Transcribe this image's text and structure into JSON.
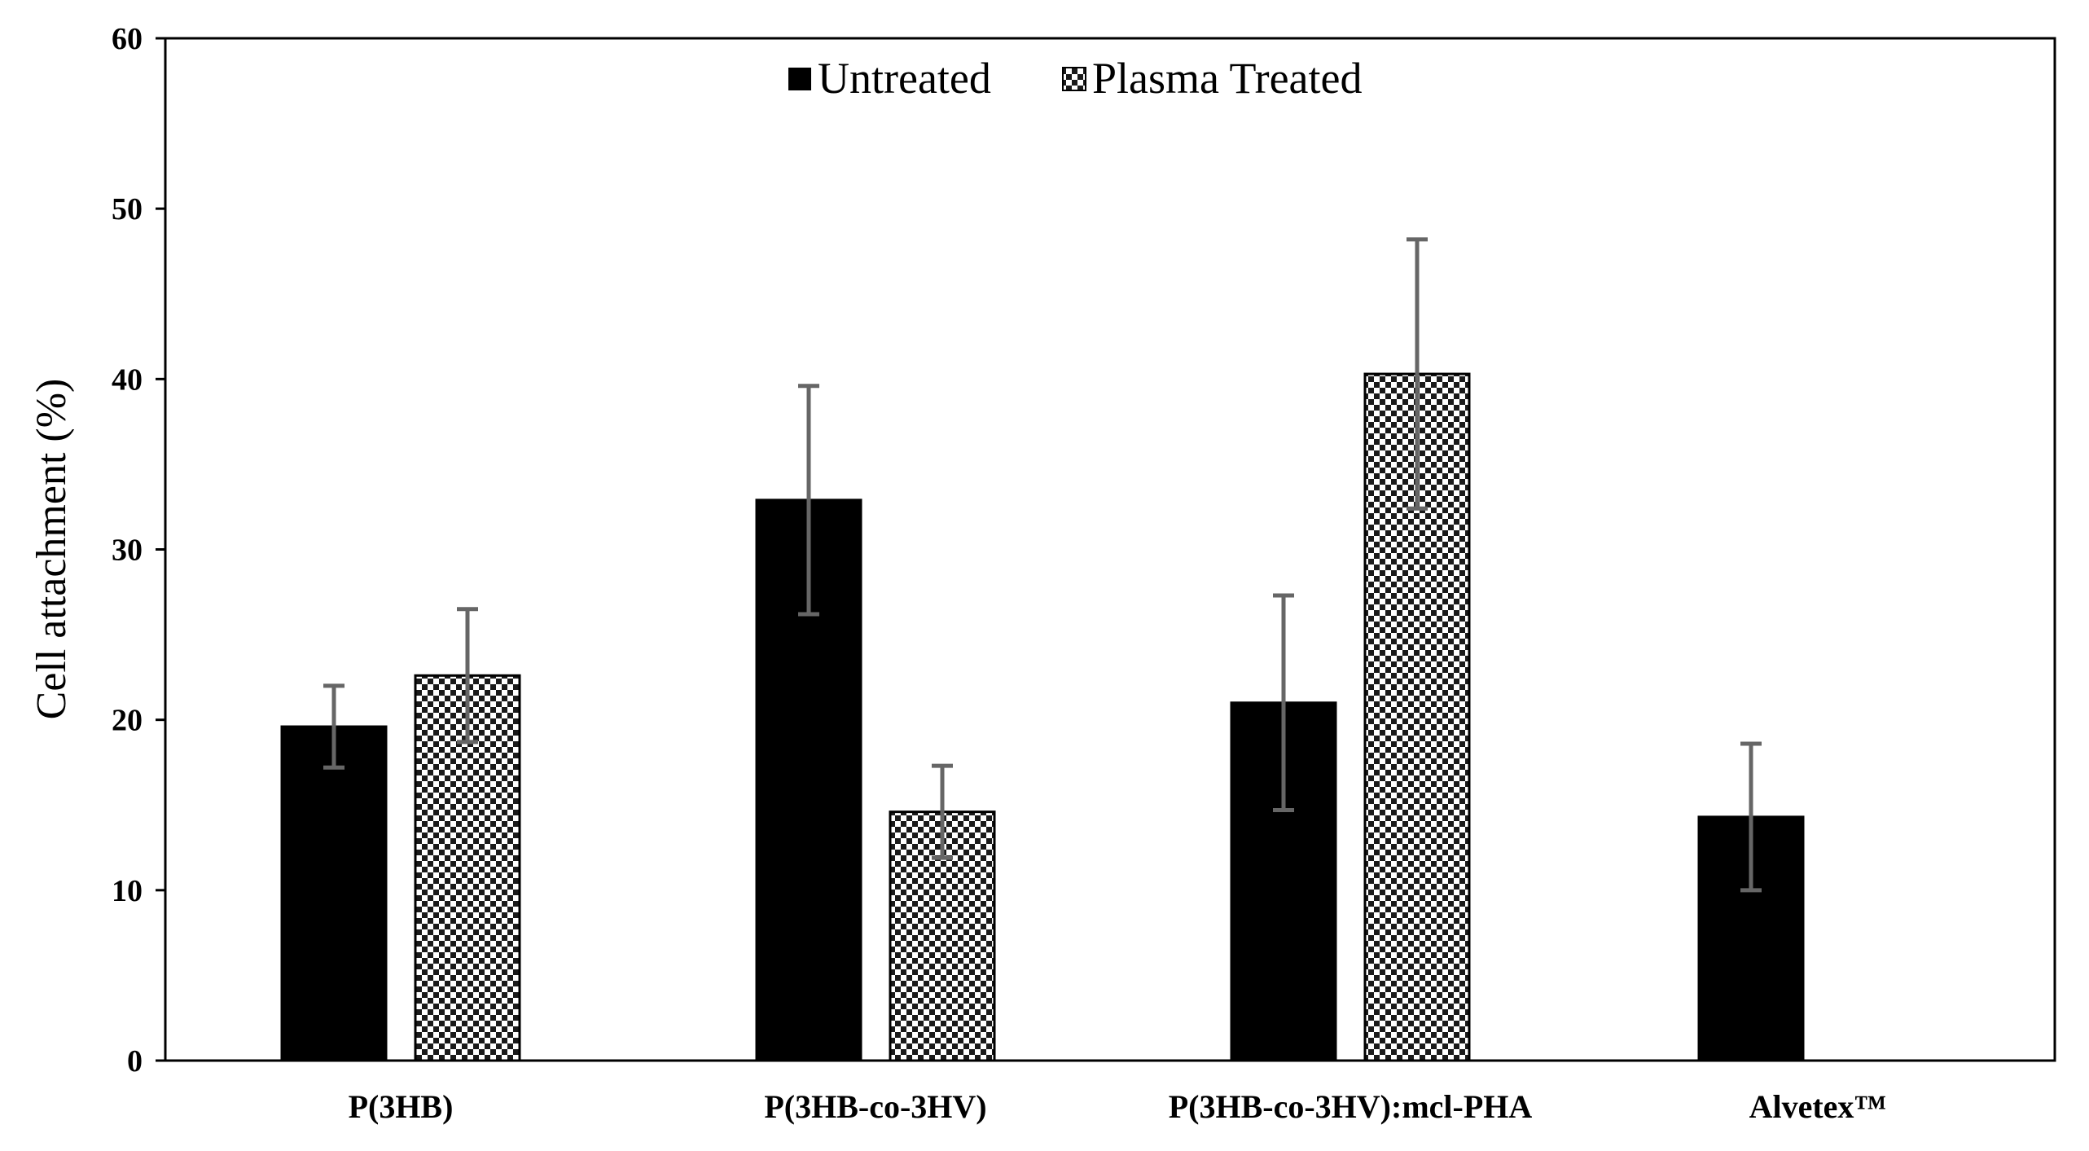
{
  "chart_data": {
    "type": "bar",
    "title": "",
    "xlabel": "",
    "ylabel": "Cell attachment (%)",
    "ylim": [
      0,
      60
    ],
    "yticks": [
      "0",
      "10",
      "20",
      "30",
      "40",
      "50",
      "60"
    ],
    "grid": false,
    "legend_position": "top-center",
    "categories": [
      "P(3HB)",
      "P(3HB-co-3HV)",
      "P(3HB-co-3HV):mcl-PHA",
      "Alvetex™"
    ],
    "series": [
      {
        "name": "Untreated",
        "fill": "solid",
        "color": "#000000",
        "values": [
          19.6,
          32.9,
          21.0,
          14.3
        ],
        "errors": [
          2.4,
          6.7,
          6.3,
          4.3
        ]
      },
      {
        "name": "Plasma Treated",
        "fill": "checkered",
        "color": "#000000",
        "values": [
          22.6,
          14.6,
          40.3,
          null
        ],
        "errors": [
          3.9,
          2.7,
          7.9,
          null
        ]
      }
    ],
    "error_bar_color": "#666666"
  }
}
